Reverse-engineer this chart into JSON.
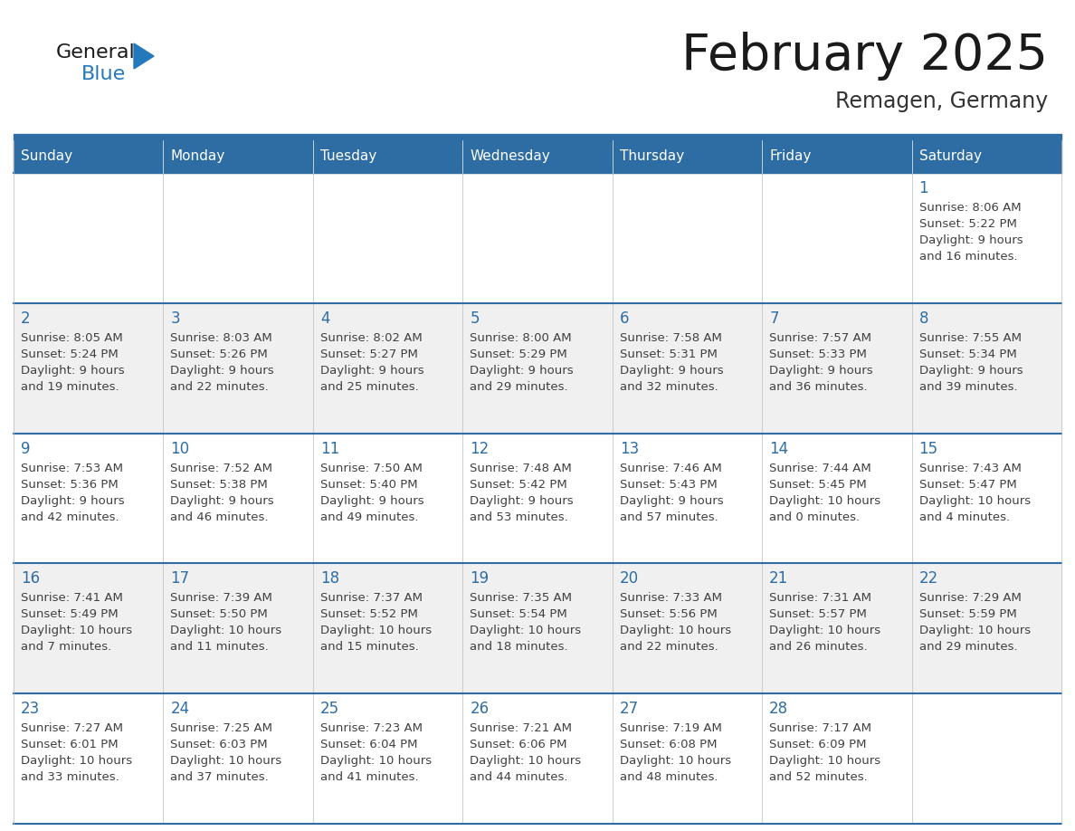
{
  "title": "February 2025",
  "subtitle": "Remagen, Germany",
  "header_bg_color": "#2E6DA4",
  "header_text_color": "#FFFFFF",
  "day_number_color": "#2E6DA4",
  "cell_text_color": "#404040",
  "title_color": "#1a1a1a",
  "subtitle_color": "#333333",
  "logo_general_color": "#1a1a1a",
  "logo_blue_color": "#2479BD",
  "row_colors": [
    "#FFFFFF",
    "#F0F0F0"
  ],
  "separator_color": "#2E6DA4",
  "days_of_week": [
    "Sunday",
    "Monday",
    "Tuesday",
    "Wednesday",
    "Thursday",
    "Friday",
    "Saturday"
  ],
  "weeks": [
    [
      {
        "date": "",
        "sunrise": "",
        "sunset": "",
        "daylight_line1": "",
        "daylight_line2": ""
      },
      {
        "date": "",
        "sunrise": "",
        "sunset": "",
        "daylight_line1": "",
        "daylight_line2": ""
      },
      {
        "date": "",
        "sunrise": "",
        "sunset": "",
        "daylight_line1": "",
        "daylight_line2": ""
      },
      {
        "date": "",
        "sunrise": "",
        "sunset": "",
        "daylight_line1": "",
        "daylight_line2": ""
      },
      {
        "date": "",
        "sunrise": "",
        "sunset": "",
        "daylight_line1": "",
        "daylight_line2": ""
      },
      {
        "date": "",
        "sunrise": "",
        "sunset": "",
        "daylight_line1": "",
        "daylight_line2": ""
      },
      {
        "date": "1",
        "sunrise": "8:06 AM",
        "sunset": "5:22 PM",
        "daylight_line1": "Daylight: 9 hours",
        "daylight_line2": "and 16 minutes."
      }
    ],
    [
      {
        "date": "2",
        "sunrise": "8:05 AM",
        "sunset": "5:24 PM",
        "daylight_line1": "Daylight: 9 hours",
        "daylight_line2": "and 19 minutes."
      },
      {
        "date": "3",
        "sunrise": "8:03 AM",
        "sunset": "5:26 PM",
        "daylight_line1": "Daylight: 9 hours",
        "daylight_line2": "and 22 minutes."
      },
      {
        "date": "4",
        "sunrise": "8:02 AM",
        "sunset": "5:27 PM",
        "daylight_line1": "Daylight: 9 hours",
        "daylight_line2": "and 25 minutes."
      },
      {
        "date": "5",
        "sunrise": "8:00 AM",
        "sunset": "5:29 PM",
        "daylight_line1": "Daylight: 9 hours",
        "daylight_line2": "and 29 minutes."
      },
      {
        "date": "6",
        "sunrise": "7:58 AM",
        "sunset": "5:31 PM",
        "daylight_line1": "Daylight: 9 hours",
        "daylight_line2": "and 32 minutes."
      },
      {
        "date": "7",
        "sunrise": "7:57 AM",
        "sunset": "5:33 PM",
        "daylight_line1": "Daylight: 9 hours",
        "daylight_line2": "and 36 minutes."
      },
      {
        "date": "8",
        "sunrise": "7:55 AM",
        "sunset": "5:34 PM",
        "daylight_line1": "Daylight: 9 hours",
        "daylight_line2": "and 39 minutes."
      }
    ],
    [
      {
        "date": "9",
        "sunrise": "7:53 AM",
        "sunset": "5:36 PM",
        "daylight_line1": "Daylight: 9 hours",
        "daylight_line2": "and 42 minutes."
      },
      {
        "date": "10",
        "sunrise": "7:52 AM",
        "sunset": "5:38 PM",
        "daylight_line1": "Daylight: 9 hours",
        "daylight_line2": "and 46 minutes."
      },
      {
        "date": "11",
        "sunrise": "7:50 AM",
        "sunset": "5:40 PM",
        "daylight_line1": "Daylight: 9 hours",
        "daylight_line2": "and 49 minutes."
      },
      {
        "date": "12",
        "sunrise": "7:48 AM",
        "sunset": "5:42 PM",
        "daylight_line1": "Daylight: 9 hours",
        "daylight_line2": "and 53 minutes."
      },
      {
        "date": "13",
        "sunrise": "7:46 AM",
        "sunset": "5:43 PM",
        "daylight_line1": "Daylight: 9 hours",
        "daylight_line2": "and 57 minutes."
      },
      {
        "date": "14",
        "sunrise": "7:44 AM",
        "sunset": "5:45 PM",
        "daylight_line1": "Daylight: 10 hours",
        "daylight_line2": "and 0 minutes."
      },
      {
        "date": "15",
        "sunrise": "7:43 AM",
        "sunset": "5:47 PM",
        "daylight_line1": "Daylight: 10 hours",
        "daylight_line2": "and 4 minutes."
      }
    ],
    [
      {
        "date": "16",
        "sunrise": "7:41 AM",
        "sunset": "5:49 PM",
        "daylight_line1": "Daylight: 10 hours",
        "daylight_line2": "and 7 minutes."
      },
      {
        "date": "17",
        "sunrise": "7:39 AM",
        "sunset": "5:50 PM",
        "daylight_line1": "Daylight: 10 hours",
        "daylight_line2": "and 11 minutes."
      },
      {
        "date": "18",
        "sunrise": "7:37 AM",
        "sunset": "5:52 PM",
        "daylight_line1": "Daylight: 10 hours",
        "daylight_line2": "and 15 minutes."
      },
      {
        "date": "19",
        "sunrise": "7:35 AM",
        "sunset": "5:54 PM",
        "daylight_line1": "Daylight: 10 hours",
        "daylight_line2": "and 18 minutes."
      },
      {
        "date": "20",
        "sunrise": "7:33 AM",
        "sunset": "5:56 PM",
        "daylight_line1": "Daylight: 10 hours",
        "daylight_line2": "and 22 minutes."
      },
      {
        "date": "21",
        "sunrise": "7:31 AM",
        "sunset": "5:57 PM",
        "daylight_line1": "Daylight: 10 hours",
        "daylight_line2": "and 26 minutes."
      },
      {
        "date": "22",
        "sunrise": "7:29 AM",
        "sunset": "5:59 PM",
        "daylight_line1": "Daylight: 10 hours",
        "daylight_line2": "and 29 minutes."
      }
    ],
    [
      {
        "date": "23",
        "sunrise": "7:27 AM",
        "sunset": "6:01 PM",
        "daylight_line1": "Daylight: 10 hours",
        "daylight_line2": "and 33 minutes."
      },
      {
        "date": "24",
        "sunrise": "7:25 AM",
        "sunset": "6:03 PM",
        "daylight_line1": "Daylight: 10 hours",
        "daylight_line2": "and 37 minutes."
      },
      {
        "date": "25",
        "sunrise": "7:23 AM",
        "sunset": "6:04 PM",
        "daylight_line1": "Daylight: 10 hours",
        "daylight_line2": "and 41 minutes."
      },
      {
        "date": "26",
        "sunrise": "7:21 AM",
        "sunset": "6:06 PM",
        "daylight_line1": "Daylight: 10 hours",
        "daylight_line2": "and 44 minutes."
      },
      {
        "date": "27",
        "sunrise": "7:19 AM",
        "sunset": "6:08 PM",
        "daylight_line1": "Daylight: 10 hours",
        "daylight_line2": "and 48 minutes."
      },
      {
        "date": "28",
        "sunrise": "7:17 AM",
        "sunset": "6:09 PM",
        "daylight_line1": "Daylight: 10 hours",
        "daylight_line2": "and 52 minutes."
      },
      {
        "date": "",
        "sunrise": "",
        "sunset": "",
        "daylight_line1": "",
        "daylight_line2": ""
      }
    ]
  ]
}
